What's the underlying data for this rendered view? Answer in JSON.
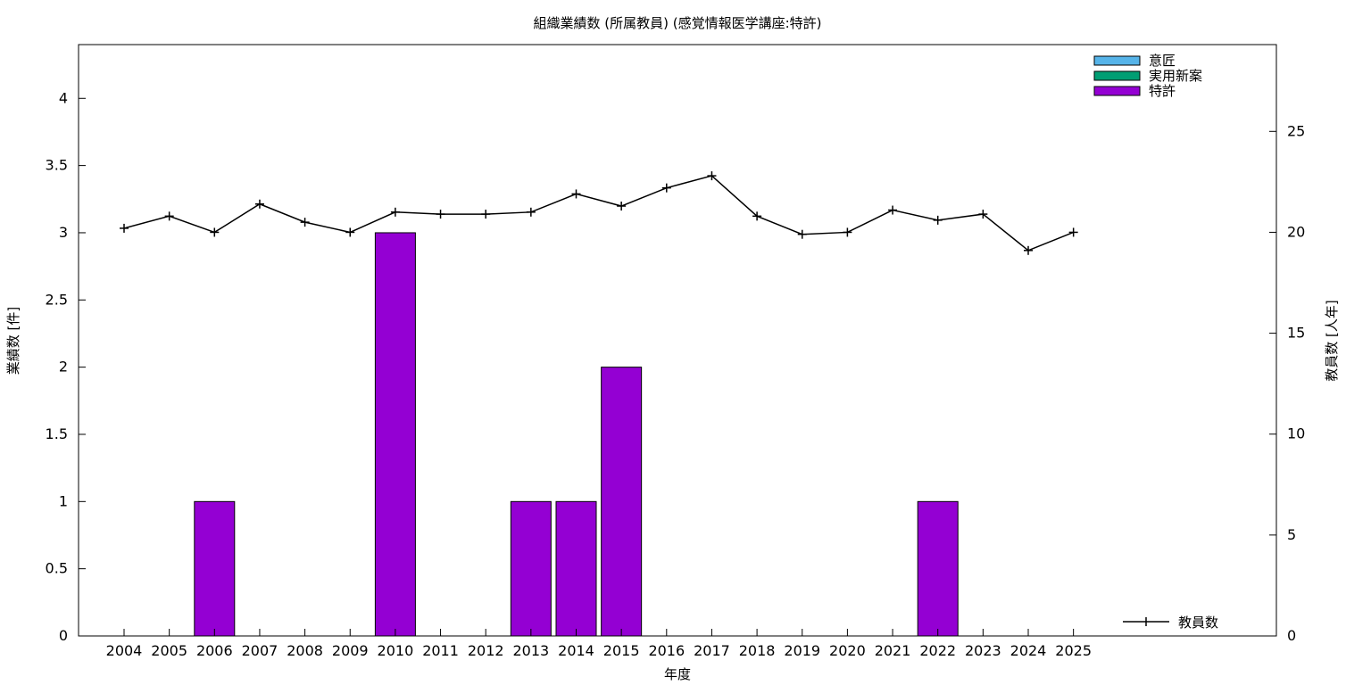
{
  "chart_data": {
    "type": "bar",
    "title": "組織業績数 (所属教員) (感覚情報医学講座:特許)",
    "xlabel": "年度",
    "ylabel": "業績数 [件]",
    "y2label": "教員数 [人年]",
    "ylim": [
      0,
      4.4
    ],
    "y2lim": [
      0,
      29.3
    ],
    "yticks": [
      "0",
      "0.5",
      "1",
      "1.5",
      "2",
      "2.5",
      "3",
      "3.5",
      "4"
    ],
    "y2ticks": [
      "0",
      "5",
      "10",
      "15",
      "20",
      "25"
    ],
    "categories": [
      "2004",
      "2005",
      "2006",
      "2007",
      "2008",
      "2009",
      "2010",
      "2011",
      "2012",
      "2013",
      "2014",
      "2015",
      "2016",
      "2017",
      "2018",
      "2019",
      "2020",
      "2021",
      "2022",
      "2023",
      "2024",
      "2025"
    ],
    "series": [
      {
        "name": "意匠",
        "kind": "bar",
        "color": "#56b4e9",
        "values": [
          0,
          0,
          0,
          0,
          0,
          0,
          0,
          0,
          0,
          0,
          0,
          0,
          0,
          0,
          0,
          0,
          0,
          0,
          0,
          0,
          0,
          0
        ]
      },
      {
        "name": "実用新案",
        "kind": "bar",
        "color": "#009e73",
        "values": [
          0,
          0,
          0,
          0,
          0,
          0,
          0,
          0,
          0,
          0,
          0,
          0,
          0,
          0,
          0,
          0,
          0,
          0,
          0,
          0,
          0,
          0
        ]
      },
      {
        "name": "特許",
        "kind": "bar",
        "color": "#9400d3",
        "values": [
          0,
          0,
          1,
          0,
          0,
          0,
          3,
          0,
          0,
          1,
          1,
          2,
          0,
          0,
          0,
          0,
          0,
          0,
          1,
          0,
          0,
          0
        ]
      },
      {
        "name": "教員数",
        "kind": "line",
        "axis": "y2",
        "color": "#000000",
        "values": [
          20.2,
          20.8,
          20.0,
          21.4,
          20.5,
          20.0,
          21.0,
          20.9,
          20.9,
          21.0,
          21.9,
          21.3,
          22.2,
          22.8,
          20.8,
          19.9,
          20.0,
          21.1,
          20.6,
          20.9,
          19.1,
          20.0
        ]
      }
    ],
    "legend_position": "top-right",
    "line_legend_position": "bottom-right",
    "grid": false
  }
}
